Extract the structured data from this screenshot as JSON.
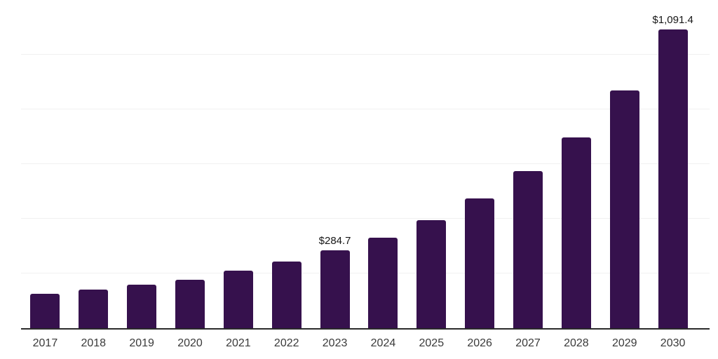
{
  "chart_data": {
    "type": "bar",
    "title": "",
    "xlabel": "",
    "ylabel": "",
    "categories": [
      "2017",
      "2018",
      "2019",
      "2020",
      "2021",
      "2022",
      "2023",
      "2024",
      "2025",
      "2026",
      "2027",
      "2028",
      "2029",
      "2030"
    ],
    "values": [
      126,
      142,
      160,
      178,
      210,
      243,
      284.7,
      332,
      395,
      475,
      574,
      698,
      870,
      1091.4
    ],
    "data_labels": {
      "2023": "$284.7",
      "2030": "$1,091.4"
    },
    "ylim": [
      0,
      1200
    ],
    "gridline_values": [
      200,
      400,
      600,
      800,
      1000,
      1200
    ],
    "grid": "on",
    "legend": "none",
    "y_axis_tick_labels_visible": false,
    "currency_prefix": "$"
  },
  "style": {
    "bar_color": "#36114d",
    "axis_color": "#2b2b2b",
    "gridline_color": "#f0f0f0",
    "tick_label_color": "#3a3a3a",
    "value_label_color": "#161616",
    "background_color": "#ffffff"
  }
}
